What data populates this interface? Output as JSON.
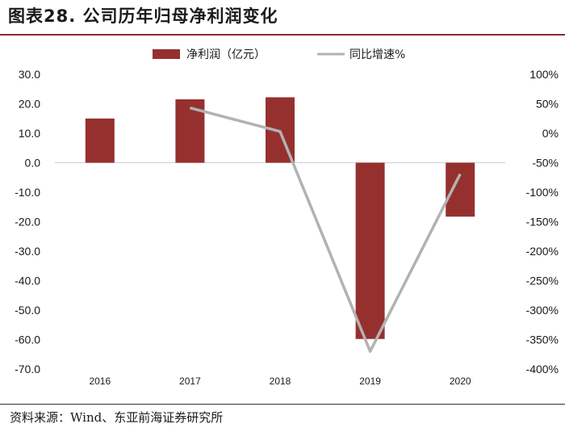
{
  "title": "图表28. 公司历年归母净利润变化",
  "source": "资料来源：Wind、东亚前海证券研究所",
  "colors": {
    "bar": "#96302e",
    "line": "#b2b2b2",
    "accent": "#8c2a2a"
  },
  "chart_data": {
    "type": "bar+line",
    "categories": [
      "2016",
      "2017",
      "2018",
      "2019",
      "2020"
    ],
    "series": [
      {
        "name": "净利润（亿元）",
        "type": "bar",
        "axis": "left",
        "values": [
          15.0,
          21.5,
          22.2,
          -59.8,
          -18.3
        ]
      },
      {
        "name": "同比增速%",
        "type": "line",
        "axis": "right",
        "values": [
          null,
          43,
          3,
          -370,
          -69
        ]
      }
    ],
    "left_axis": {
      "ylim": [
        -70,
        30
      ],
      "ticks": [
        "30.0",
        "20.0",
        "10.0",
        "0.0",
        "-10.0",
        "-20.0",
        "-30.0",
        "-40.0",
        "-50.0",
        "-60.0",
        "-70.0"
      ]
    },
    "right_axis": {
      "ylim": [
        -400,
        100
      ],
      "ticks": [
        "100%",
        "50%",
        "0%",
        "-50%",
        "-100%",
        "-150%",
        "-200%",
        "-250%",
        "-300%",
        "-350%",
        "-400%"
      ]
    },
    "legend": {
      "placement": "top-center"
    }
  }
}
